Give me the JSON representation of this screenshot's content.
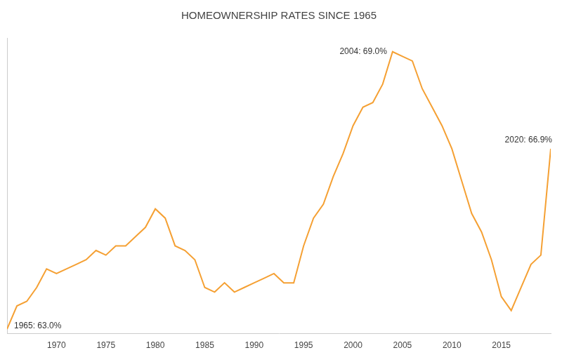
{
  "chart_data": {
    "type": "line",
    "title": "HOMEOWNERSHIP RATES SINCE 1965",
    "x": [
      1965,
      1966,
      1967,
      1968,
      1969,
      1970,
      1971,
      1972,
      1973,
      1974,
      1975,
      1976,
      1977,
      1978,
      1979,
      1980,
      1981,
      1982,
      1983,
      1984,
      1985,
      1986,
      1987,
      1988,
      1989,
      1990,
      1991,
      1992,
      1993,
      1994,
      1995,
      1996,
      1997,
      1998,
      1999,
      2000,
      2001,
      2002,
      2003,
      2004,
      2005,
      2006,
      2007,
      2008,
      2009,
      2010,
      2011,
      2012,
      2013,
      2014,
      2015,
      2016,
      2017,
      2018,
      2019,
      2020
    ],
    "values": [
      63.0,
      63.5,
      63.6,
      63.9,
      64.3,
      64.2,
      64.3,
      64.4,
      64.5,
      64.7,
      64.6,
      64.8,
      64.8,
      65.0,
      65.2,
      65.6,
      65.4,
      64.8,
      64.7,
      64.5,
      63.9,
      63.8,
      64.0,
      63.8,
      63.9,
      64.0,
      64.1,
      64.2,
      64.0,
      64.0,
      64.8,
      65.4,
      65.7,
      66.3,
      66.8,
      67.4,
      67.8,
      67.9,
      68.3,
      69.0,
      68.9,
      68.8,
      68.2,
      67.8,
      67.4,
      66.9,
      66.2,
      65.5,
      65.1,
      64.5,
      63.7,
      63.4,
      63.9,
      64.4,
      64.6,
      66.9
    ],
    "color": "#f5a033",
    "xlim": [
      1965,
      2020
    ],
    "xticks": [
      1970,
      1975,
      1980,
      1985,
      1990,
      1995,
      2000,
      2005,
      2010,
      2015
    ],
    "ylim": [
      62.9,
      69.3
    ],
    "grid": false,
    "tick_labels": "x",
    "annotations": [
      {
        "x": 1965,
        "y": 63.0,
        "text": "1965: 63.0%"
      },
      {
        "x": 2004,
        "y": 69.0,
        "text": "2004: 69.0%"
      },
      {
        "x": 2020,
        "y": 66.9,
        "text": "2020: 66.9%"
      }
    ]
  }
}
